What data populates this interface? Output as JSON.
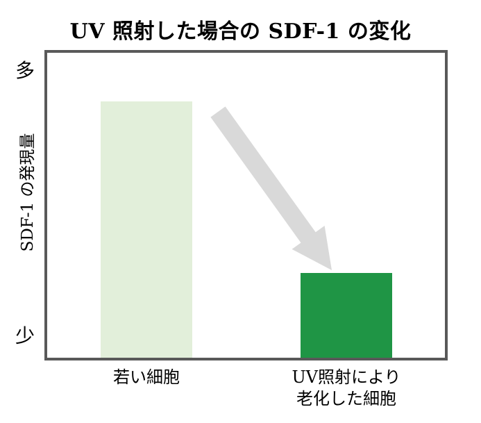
{
  "chart_data": {
    "type": "bar",
    "title": "UV 照射した場合の SDF-1 の変化",
    "ylabel": "SDF-1 の発現量",
    "y_axis_top_label": "多",
    "y_axis_bottom_label": "少",
    "categories": [
      {
        "name": "若い細胞",
        "lines": [
          "若い細胞"
        ]
      },
      {
        "name": "UV照射により老化した細胞",
        "lines": [
          "UV照射により",
          "老化した細胞"
        ]
      }
    ],
    "values": [
      100,
      33
    ],
    "ylim": [
      0,
      119
    ],
    "grid": false,
    "legend": "none",
    "axis_note": "qualitative y-axis: 多 = high expression (top), 少 = low expression (bottom)",
    "bar_colors": [
      "#E2EFDA",
      "#1F9545"
    ],
    "plot_border_color": "#595959",
    "annotation": {
      "type": "arrow",
      "direction": "down-right",
      "meaning": "decrease of SDF-1 from young cells to UV-aged cells",
      "color": "#D9D9D9"
    }
  }
}
